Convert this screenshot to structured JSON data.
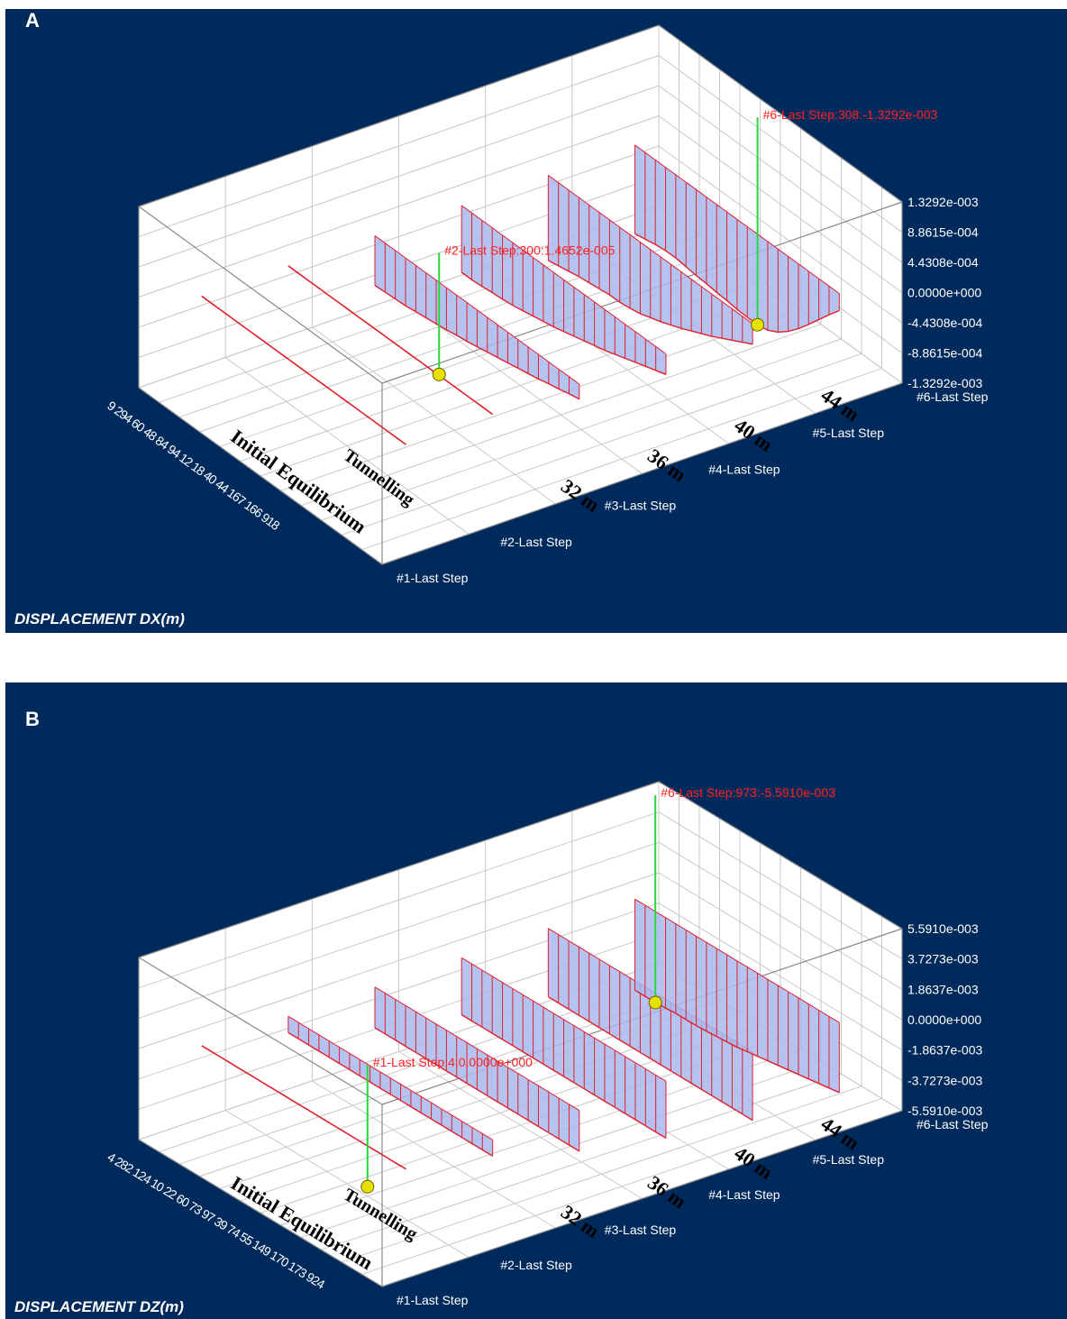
{
  "panels": [
    {
      "panel_label": "A",
      "quantity_label": "DISPLACEMENT DX(m)",
      "axis_ticks": [
        "1.3292e-003",
        "8.8615e-004",
        "4.4308e-004",
        "0.0000e+000",
        "-4.4308e-004",
        "-8.8615e-004",
        "-1.3292e-003"
      ],
      "step_labels": [
        "#1-Last Step",
        "#2-Last Step",
        "#3-Last Step",
        "#4-Last Step",
        "#5-Last Step",
        "#6-Last Step"
      ],
      "stage_labels": [
        "Initial Equilibrium",
        "Tunnelling",
        "32 m",
        "36 m",
        "40 m",
        "44 m"
      ],
      "node_ids_text": "9 294 60 48 84 94 12 18 40 44 167 166 918",
      "markers": [
        {
          "text": "#2-Last Step:300:1.4652e-005",
          "step": 2,
          "node": 300,
          "value": 1.4652e-05
        },
        {
          "text": "#6-Last Step:308:-1.3292e-003",
          "step": 6,
          "node": 308,
          "value": -0.0013292
        }
      ]
    },
    {
      "panel_label": "B",
      "quantity_label": "DISPLACEMENT DZ(m)",
      "axis_ticks": [
        "5.5910e-003",
        "3.7273e-003",
        "1.8637e-003",
        "0.0000e+000",
        "-1.8637e-003",
        "-3.7273e-003",
        "-5.5910e-003"
      ],
      "step_labels": [
        "#1-Last Step",
        "#2-Last Step",
        "#3-Last Step",
        "#4-Last Step",
        "#5-Last Step",
        "#6-Last Step"
      ],
      "stage_labels": [
        "Initial Equilibrium",
        "Tunnelling",
        "32 m",
        "36 m",
        "40 m",
        "44 m"
      ],
      "node_ids_text": "4 282 124 10 22 60 73 97 39 74 55 149 170 173 924",
      "markers": [
        {
          "text": "#1-Last Step:4:0.0000e+000",
          "step": 1,
          "node": 4,
          "value": 0.0
        },
        {
          "text": "#6-Last Step:973:-5.5910e-003",
          "step": 6,
          "node": 973,
          "value": -0.005591
        }
      ]
    }
  ],
  "chart_data": [
    {
      "type": "area",
      "title": "DISPLACEMENT DX(m)",
      "y_ticks": [
        0.0013292,
        0.00088615,
        0.00044308,
        0.0,
        -0.00044308,
        -0.00088615,
        -0.0013292
      ],
      "ylim": [
        -0.0013292,
        0.0013292
      ],
      "series": [
        {
          "name": "#1-Last Step",
          "stage": "Initial Equilibrium",
          "values": [
            0,
            0,
            0,
            0,
            0,
            0,
            0,
            0,
            0,
            0,
            0,
            0,
            0,
            0,
            0,
            0,
            0,
            0,
            0,
            0,
            0
          ]
        },
        {
          "name": "#2-Last Step",
          "stage": "Tunnelling",
          "values": [
            0,
            0,
            0,
            0,
            0,
            0,
            0,
            0,
            0,
            0,
            0,
            0,
            0,
            0,
            0,
            0,
            0,
            0,
            0,
            0,
            0
          ]
        },
        {
          "name": "#3-Last Step",
          "stage": "32 m",
          "values": [
            -0.00022,
            -0.00025,
            -0.00029,
            -0.00032,
            -0.00036,
            -0.00039,
            -0.00042,
            -0.00045,
            -0.00048,
            -0.00051,
            -0.00054,
            -0.00057,
            -0.00059,
            -0.00062,
            -0.00064,
            -0.00066,
            -0.00068,
            -0.0007,
            -0.00071,
            -0.00072,
            -0.00073
          ]
        },
        {
          "name": "#4-Last Step",
          "stage": "36 m",
          "values": [
            -0.0003,
            -0.00035,
            -0.0004,
            -0.00045,
            -0.0005,
            -0.00055,
            -0.0006,
            -0.00064,
            -0.00068,
            -0.00072,
            -0.00076,
            -0.0008,
            -0.00083,
            -0.00086,
            -0.00089,
            -0.00092,
            -0.00094,
            -0.00095,
            -0.00097,
            -0.00098,
            -0.00098
          ]
        },
        {
          "name": "#5-Last Step",
          "stage": "40 m",
          "values": [
            -0.0003,
            -0.00038,
            -0.00046,
            -0.00054,
            -0.00062,
            -0.00069,
            -0.00076,
            -0.00083,
            -0.00089,
            -0.00095,
            -0.001,
            -0.00105,
            -0.00108,
            -0.0011,
            -0.0011,
            -0.00112,
            -0.00114,
            -0.00116,
            -0.00119,
            -0.00122,
            -0.00125
          ]
        },
        {
          "name": "#6-Last Step",
          "stage": "44 m",
          "values": [
            -0.00025,
            -0.00042,
            -0.0006,
            -0.00078,
            -0.00095,
            -0.0011,
            -0.00122,
            -0.0013,
            -0.00133,
            -0.00133,
            -0.00132,
            -0.0013,
            -0.00129,
            -0.00127,
            -0.00126,
            -0.00124,
            -0.00122,
            -0.00122,
            -0.00124,
            -0.00127,
            -0.0013
          ]
        }
      ]
    },
    {
      "type": "area",
      "title": "DISPLACEMENT DZ(m)",
      "y_ticks": [
        0.005591,
        0.0037273,
        0.0018637,
        0.0,
        -0.0018637,
        -0.0037273,
        -0.005591
      ],
      "ylim": [
        -0.005591,
        0.005591
      ],
      "series": [
        {
          "name": "#1-Last Step",
          "stage": "Initial Equilibrium",
          "values": [
            0,
            0,
            0,
            0,
            0,
            0,
            0,
            0,
            0,
            0,
            0,
            0,
            0,
            0,
            0,
            0,
            0,
            0,
            0,
            0,
            0
          ]
        },
        {
          "name": "#2-Last Step",
          "stage": "Tunnelling",
          "values": [
            -0.001,
            -0.001,
            -0.001,
            -0.001,
            -0.001,
            -0.001,
            -0.001,
            -0.001,
            -0.001,
            -0.001,
            -0.001,
            -0.001,
            -0.001,
            -0.001,
            -0.001,
            -0.001,
            -0.001,
            -0.001,
            -0.001,
            -0.001,
            -0.001
          ]
        },
        {
          "name": "#3-Last Step",
          "stage": "32 m",
          "values": [
            -0.0025,
            -0.0025,
            -0.0025,
            -0.0025,
            -0.0025,
            -0.0025,
            -0.0025,
            -0.0025,
            -0.0025,
            -0.0025,
            -0.0025,
            -0.0025,
            -0.0025,
            -0.0025,
            -0.0025,
            -0.0025,
            -0.0025,
            -0.0025,
            -0.0025,
            -0.0025,
            -0.0025
          ]
        },
        {
          "name": "#4-Last Step",
          "stage": "36 m",
          "values": [
            -0.0035,
            -0.0035,
            -0.0035,
            -0.0035,
            -0.0035,
            -0.0035,
            -0.0035,
            -0.0035,
            -0.0035,
            -0.0035,
            -0.0035,
            -0.0035,
            -0.0035,
            -0.0035,
            -0.0035,
            -0.0035,
            -0.0035,
            -0.0035,
            -0.0035,
            -0.0035,
            -0.0035
          ]
        },
        {
          "name": "#5-Last Step",
          "stage": "40 m",
          "values": [
            -0.0042,
            -0.0042,
            -0.0042,
            -0.0042,
            -0.0042,
            -0.0042,
            -0.0042,
            -0.0042,
            -0.0042,
            -0.0042,
            -0.0042,
            -0.0042,
            -0.0042,
            -0.0042,
            -0.0042,
            -0.0042,
            -0.0042,
            -0.0042,
            -0.0042,
            -0.0042,
            -0.0042
          ]
        },
        {
          "name": "#6-Last Step",
          "stage": "44 m",
          "values": [
            -0.0043,
            -0.0044,
            -0.0045,
            -0.0046,
            -0.0047,
            -0.0048,
            -0.0049,
            -0.005,
            -0.0051,
            -0.0052,
            -0.0053,
            -0.00535,
            -0.0054,
            -0.00545,
            -0.0055,
            -0.0055,
            -0.0055,
            -0.00555,
            -0.00559,
            -0.00559,
            -0.00559
          ]
        }
      ]
    }
  ]
}
